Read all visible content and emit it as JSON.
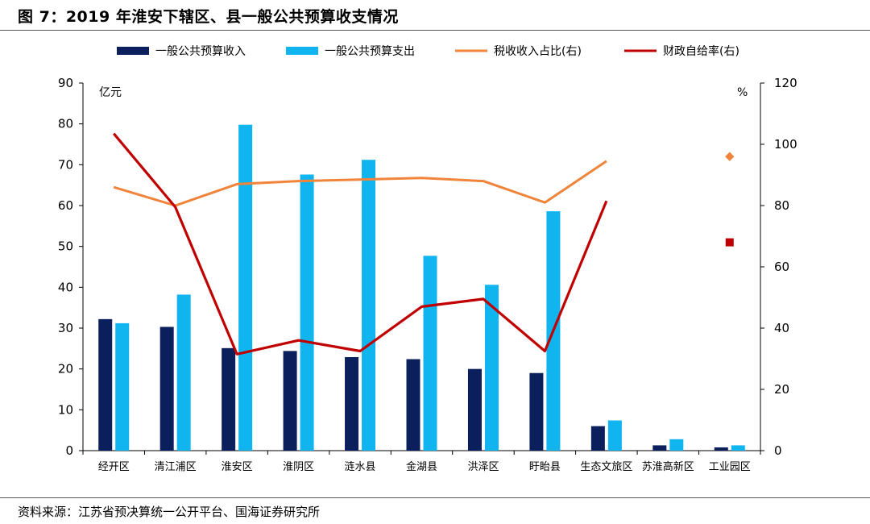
{
  "header": {
    "title": "图 7：2019 年淮安下辖区、县一般公共预算收支情况"
  },
  "footer": {
    "source": "资料来源：江苏省预决算统一公开平台、国海证券研究所"
  },
  "colors": {
    "revenue": "#0B1F5C",
    "expenditure": "#10B4EE",
    "tax_ratio": "#F0843A",
    "self_sufficiency": "#C00000"
  },
  "chart_data": {
    "type": "bar",
    "categories": [
      "经开区",
      "清江浦区",
      "淮安区",
      "淮阴区",
      "涟水县",
      "金湖县",
      "洪泽区",
      "盱眙县",
      "生态文旅区",
      "苏淮高新区",
      "工业园区"
    ],
    "left_axis": {
      "unit": "亿元",
      "ylim": [
        0,
        90
      ],
      "ticks": [
        "0",
        "10",
        "20",
        "30",
        "40",
        "50",
        "60",
        "70",
        "80",
        "90"
      ]
    },
    "right_axis": {
      "unit": "%",
      "ylim": [
        0,
        120
      ],
      "ticks": [
        "0",
        "20",
        "40",
        "60",
        "80",
        "100",
        "120"
      ]
    },
    "legend_position": "top",
    "grid": false,
    "series": [
      {
        "name": "一般公共预算收入",
        "type": "bar",
        "axis": "left",
        "values": [
          32.2,
          30.3,
          25.1,
          24.4,
          22.9,
          22.4,
          20.0,
          19.0,
          6.0,
          1.3,
          0.8
        ]
      },
      {
        "name": "一般公共预算支出",
        "type": "bar",
        "axis": "left",
        "values": [
          31.2,
          38.2,
          79.8,
          67.6,
          71.2,
          47.7,
          40.6,
          58.6,
          7.4,
          2.8,
          1.3
        ]
      },
      {
        "name": "税收收入占比(右)",
        "type": "line",
        "axis": "right",
        "values": [
          86,
          80,
          87,
          88,
          88.5,
          89,
          88,
          81,
          94.5,
          null,
          96
        ]
      },
      {
        "name": "财政自给率(右)",
        "type": "line",
        "axis": "right",
        "values": [
          103.5,
          79.5,
          31.5,
          36,
          32.5,
          47,
          49.5,
          32.5,
          81.5,
          null,
          68
        ]
      }
    ]
  }
}
